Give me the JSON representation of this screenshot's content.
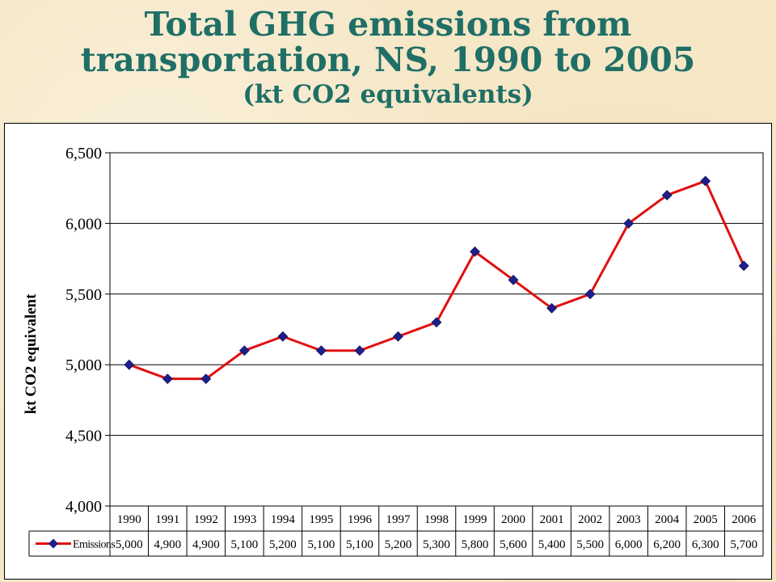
{
  "title_line1": "Total GHG emissions from",
  "title_line2": "transportation, NS, 1990 to 2005",
  "subtitle": "(kt CO2 equivalents)",
  "colors": {
    "title": "#1f6f66",
    "line": "#e01010",
    "marker": "#1c1f8a",
    "background": "#f6e7c7"
  },
  "chart_data": {
    "type": "line",
    "title": "",
    "xlabel": "",
    "ylabel": "kt CO2 equivalent",
    "ylim": [
      4000,
      6500
    ],
    "yticks": [
      4000,
      4500,
      5000,
      5500,
      6000,
      6500
    ],
    "ytick_labels": [
      "4,000",
      "4,500",
      "5,000",
      "5,500",
      "6,000",
      "6,500"
    ],
    "grid": true,
    "legend": "data-table",
    "categories": [
      "1990",
      "1991",
      "1992",
      "1993",
      "1994",
      "1995",
      "1996",
      "1997",
      "1998",
      "1999",
      "2000",
      "2001",
      "2002",
      "2003",
      "2004",
      "2005",
      "2006"
    ],
    "series": [
      {
        "name": "Emissions",
        "values": [
          5000,
          4900,
          4900,
          5100,
          5200,
          5100,
          5100,
          5200,
          5300,
          5800,
          5600,
          5400,
          5500,
          6000,
          6200,
          6300,
          5700
        ],
        "value_labels": [
          "5,000",
          "4,900",
          "4,900",
          "5,100",
          "5,200",
          "5,100",
          "5,100",
          "5,200",
          "5,300",
          "5,800",
          "5,600",
          "5,400",
          "5,500",
          "6,000",
          "6,200",
          "6,300",
          "5,700"
        ]
      }
    ]
  }
}
